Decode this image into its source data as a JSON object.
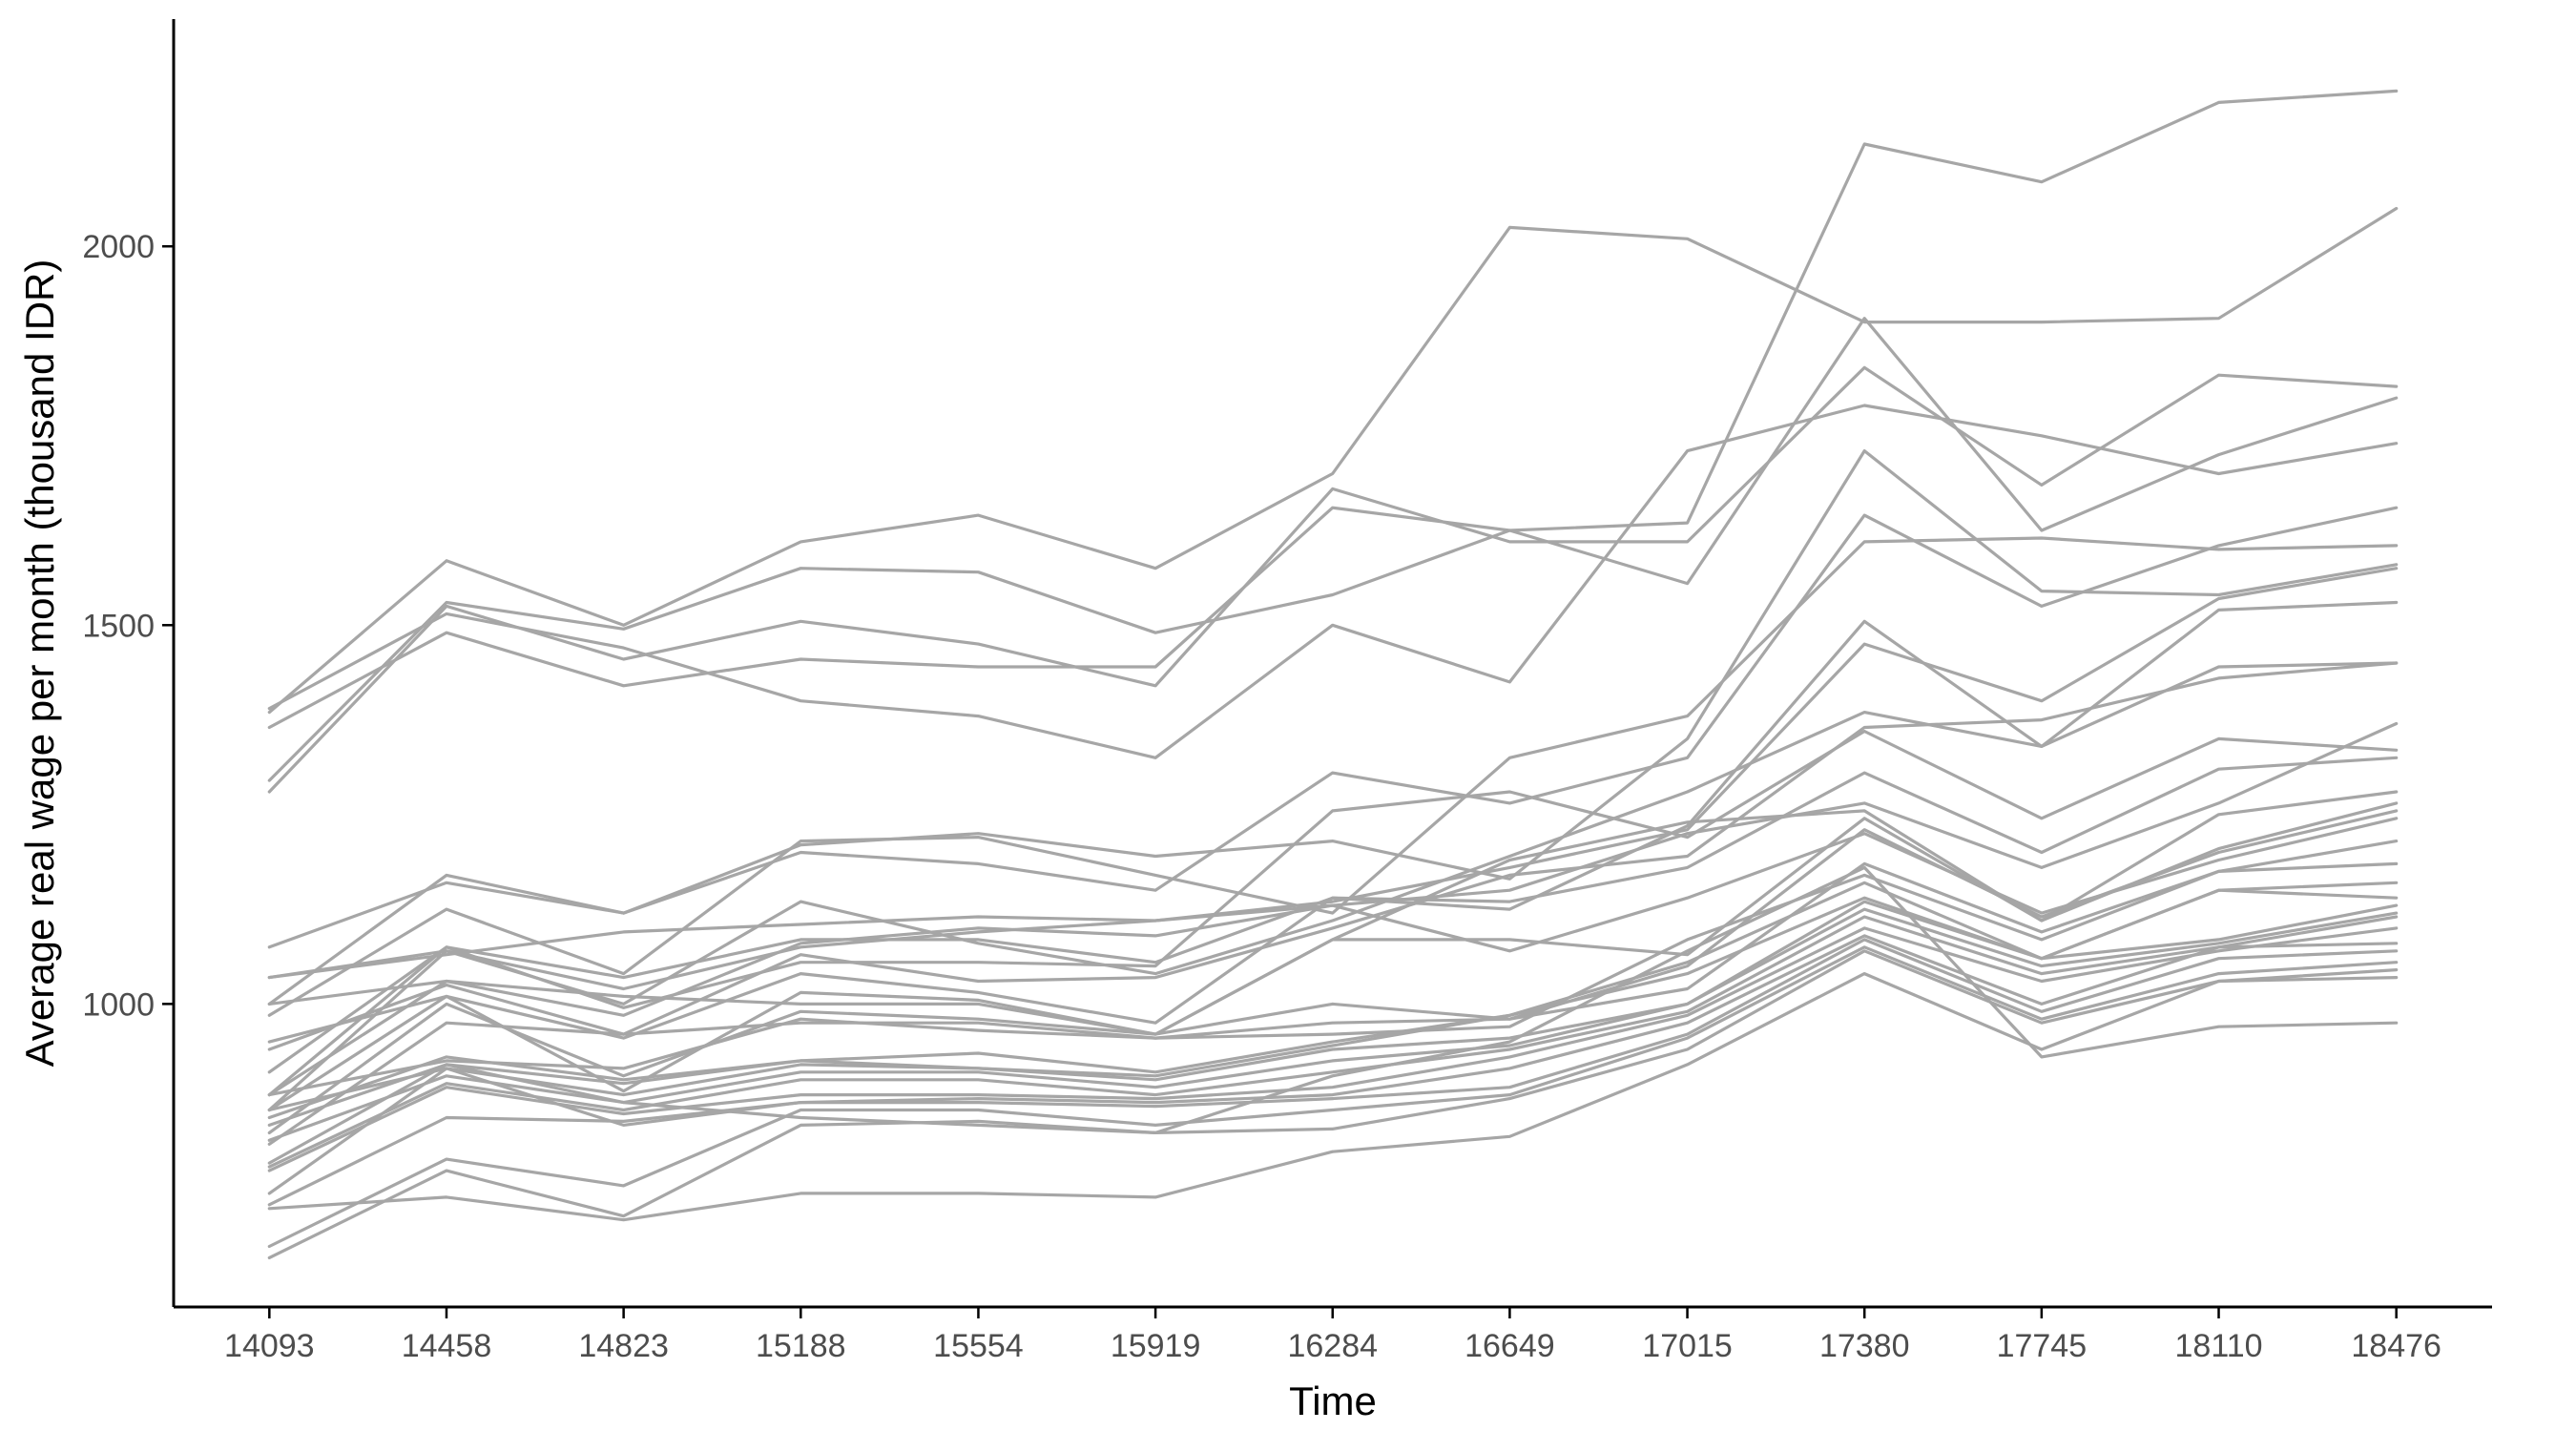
{
  "chart_data": {
    "type": "line",
    "title": "",
    "xlabel": "Time",
    "ylabel": "Average real wage per month (thousand IDR)",
    "x": [
      14093,
      14458,
      14823,
      15188,
      15554,
      15919,
      16284,
      16649,
      17015,
      17380,
      17745,
      18110,
      18476
    ],
    "x_ticks": [
      "14093",
      "14458",
      "14823",
      "15188",
      "15554",
      "15919",
      "16284",
      "16649",
      "17015",
      "17380",
      "17745",
      "18110",
      "18476"
    ],
    "y_ticks": [
      "1000",
      "1500",
      "2000"
    ],
    "ylim": [
      600,
      2300
    ],
    "grid": false,
    "legend": "none",
    "line_color": "#a6a6a6",
    "series": [
      {
        "values": [
          1385,
          1585,
          1500,
          1610,
          1645,
          1575,
          1700,
          2025,
          2010,
          1900,
          1900,
          1905,
          2050
        ]
      },
      {
        "values": [
          1295,
          1530,
          1495,
          1575,
          1570,
          1490,
          1540,
          1625,
          1635,
          2135,
          2085,
          2190,
          2205
        ]
      },
      {
        "values": [
          1280,
          1525,
          1455,
          1505,
          1475,
          1420,
          1680,
          1610,
          1610,
          1840,
          1685,
          1830,
          1815
        ]
      },
      {
        "values": [
          1365,
          1490,
          1420,
          1455,
          1445,
          1445,
          1655,
          1625,
          1555,
          1905,
          1625,
          1725,
          1800
        ]
      },
      {
        "values": [
          1390,
          1515,
          1470,
          1400,
          1380,
          1325,
          1500,
          1425,
          1730,
          1790,
          1750,
          1700,
          1740
        ]
      },
      {
        "values": [
          1075,
          1160,
          1120,
          1210,
          1225,
          1195,
          1215,
          1165,
          1350,
          1730,
          1545,
          1540,
          1580
        ]
      },
      {
        "values": [
          1000,
          1170,
          1120,
          1200,
          1185,
          1150,
          1305,
          1265,
          1325,
          1645,
          1525,
          1605,
          1655
        ]
      },
      {
        "values": [
          985,
          1125,
          1040,
          1215,
          1220,
          1170,
          1120,
          1325,
          1380,
          1610,
          1615,
          1600,
          1605
        ]
      },
      {
        "values": [
          880,
          1075,
          1035,
          1085,
          1085,
          1055,
          1140,
          1125,
          1235,
          1505,
          1340,
          1520,
          1530
        ]
      },
      {
        "values": [
          860,
          1070,
          1020,
          1075,
          1095,
          1110,
          1135,
          1180,
          1230,
          1475,
          1400,
          1535,
          1575
        ]
      },
      {
        "values": [
          1035,
          1070,
          1000,
          1135,
          1080,
          1040,
          1110,
          1195,
          1280,
          1385,
          1340,
          1445,
          1450
        ]
      },
      {
        "values": [
          940,
          1025,
          960,
          1065,
          1030,
          1035,
          1100,
          1170,
          1195,
          1365,
          1375,
          1430,
          1450
        ]
      },
      {
        "values": [
          910,
          1075,
          995,
          1055,
          1055,
          1050,
          1255,
          1280,
          1220,
          1360,
          1245,
          1350,
          1335
        ]
      },
      {
        "values": [
          950,
          1010,
          955,
          1040,
          1015,
          975,
          1140,
          1135,
          1180,
          1305,
          1200,
          1310,
          1325
        ]
      },
      {
        "values": [
          1000,
          1030,
          985,
          1080,
          1100,
          1090,
          1130,
          1150,
          1225,
          1265,
          1180,
          1265,
          1370
        ]
      },
      {
        "values": [
          880,
          1030,
          1010,
          1000,
          1000,
          960,
          1085,
          1190,
          1240,
          1255,
          1110,
          1250,
          1280
        ]
      },
      {
        "values": [
          860,
          1010,
          885,
          1015,
          1005,
          960,
          1085,
          1085,
          1065,
          1245,
          1110,
          1205,
          1265
        ]
      },
      {
        "values": [
          830,
          1000,
          905,
          990,
          980,
          960,
          1000,
          980,
          1050,
          1230,
          1115,
          1200,
          1255
        ]
      },
      {
        "values": [
          1035,
          1065,
          1095,
          1105,
          1115,
          1110,
          1130,
          1070,
          1140,
          1225,
          1120,
          1190,
          1245
        ]
      },
      {
        "values": [
          815,
          975,
          960,
          975,
          975,
          955,
          975,
          980,
          1020,
          1185,
          1095,
          1175,
          1215
        ]
      },
      {
        "values": [
          880,
          925,
          915,
          980,
          965,
          955,
          960,
          970,
          1085,
          1170,
          1085,
          1175,
          1185
        ]
      },
      {
        "values": [
          850,
          930,
          900,
          925,
          935,
          910,
          950,
          985,
          1055,
          1160,
          1060,
          1150,
          1160
        ]
      },
      {
        "values": [
          840,
          920,
          895,
          925,
          915,
          905,
          945,
          985,
          1040,
          1140,
          1060,
          1150,
          1140
        ]
      },
      {
        "values": [
          860,
          915,
          880,
          920,
          915,
          900,
          940,
          955,
          1000,
          1135,
          1060,
          1085,
          1130
        ]
      },
      {
        "values": [
          820,
          905,
          870,
          910,
          910,
          890,
          925,
          945,
          1000,
          1125,
          1050,
          1080,
          1120
        ]
      },
      {
        "values": [
          785,
          895,
          860,
          900,
          900,
          880,
          910,
          940,
          990,
          1115,
          1040,
          1075,
          1115
        ]
      },
      {
        "values": [
          780,
          890,
          855,
          880,
          880,
          875,
          890,
          930,
          985,
          1100,
          1030,
          1070,
          1100
        ]
      },
      {
        "values": [
          735,
          850,
          845,
          870,
          875,
          870,
          880,
          915,
          975,
          1090,
          1000,
          1075,
          1080
        ]
      },
      {
        "values": [
          750,
          915,
          840,
          870,
          870,
          865,
          875,
          890,
          960,
          1085,
          990,
          1060,
          1070
        ]
      },
      {
        "values": [
          680,
          795,
          760,
          860,
          860,
          840,
          860,
          880,
          955,
          1075,
          980,
          1040,
          1055
        ]
      },
      {
        "values": [
          665,
          780,
          720,
          840,
          845,
          830,
          835,
          875,
          940,
          1070,
          975,
          1030,
          1045
        ]
      },
      {
        "values": [
          730,
          745,
          715,
          750,
          750,
          745,
          805,
          825,
          920,
          1040,
          940,
          1030,
          1035
        ]
      },
      {
        "values": [
          790,
          920,
          870,
          850,
          840,
          830,
          905,
          950,
          1070,
          1180,
          930,
          970,
          975
        ]
      }
    ]
  }
}
